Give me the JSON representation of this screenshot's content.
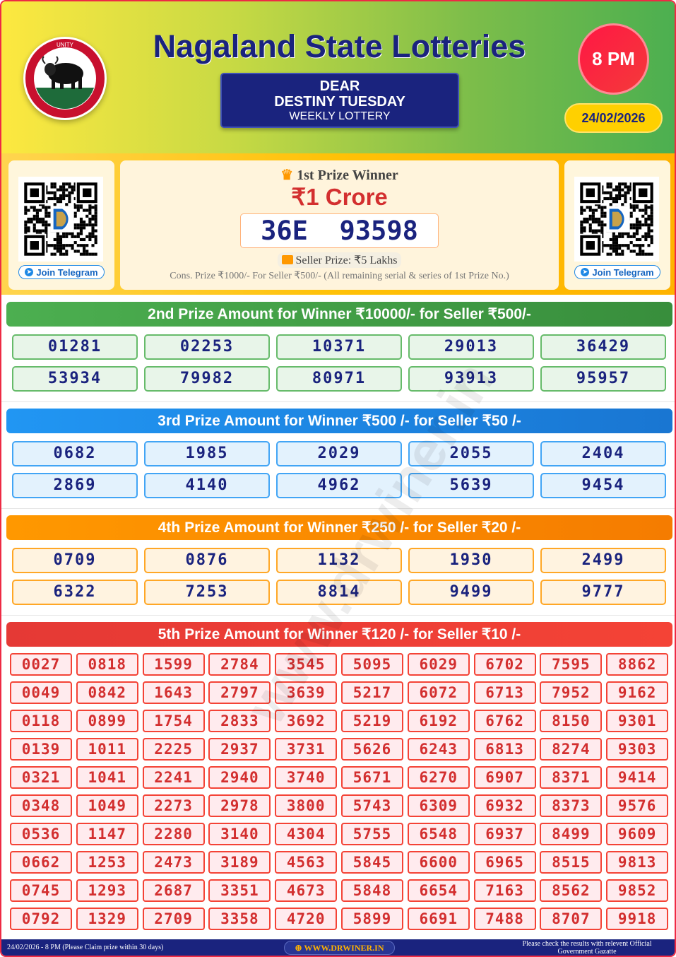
{
  "header": {
    "title": "Nagaland State Lotteries",
    "lottery_line1": "DEAR",
    "lottery_line2": "DESTINY TUESDAY",
    "lottery_line3": "WEEKLY LOTTERY",
    "time": "8 PM",
    "date": "24/02/2026",
    "logo_text": "UNITY · GOVERNMENT OF NAGALAND"
  },
  "colors": {
    "navy": "#1a237e",
    "red": "#d32f2f",
    "green": "#43a047",
    "blue": "#1e88e5",
    "orange": "#fb8c00",
    "red_header": "#e53935"
  },
  "telegram": {
    "label": "Join Telegram"
  },
  "first_prize": {
    "title": "1st Prize Winner",
    "amount": "₹1 Crore",
    "number": "36E  93598",
    "seller": "Seller Prize: ₹5 Lakhs",
    "cons": "Cons. Prize ₹1000/- For Seller ₹500/- (All remaining serial & series of 1st Prize No.)"
  },
  "second_prize": {
    "heading": "2nd Prize Amount for Winner ₹10000/- for Seller ₹500/-",
    "numbers": [
      "01281",
      "02253",
      "10371",
      "29013",
      "36429",
      "53934",
      "79982",
      "80971",
      "93913",
      "95957"
    ]
  },
  "third_prize": {
    "heading": "3rd Prize Amount for Winner ₹500 /- for Seller ₹50 /-",
    "numbers": [
      "0682",
      "1985",
      "2029",
      "2055",
      "2404",
      "2869",
      "4140",
      "4962",
      "5639",
      "9454"
    ]
  },
  "fourth_prize": {
    "heading": "4th Prize Amount for Winner ₹250 /- for Seller ₹20 /-",
    "numbers": [
      "0709",
      "0876",
      "1132",
      "1930",
      "2499",
      "6322",
      "7253",
      "8814",
      "9499",
      "9777"
    ]
  },
  "fifth_prize": {
    "heading": "5th Prize Amount for Winner ₹120 /- for Seller ₹10 /-",
    "numbers": [
      "0027",
      "0818",
      "1599",
      "2784",
      "3545",
      "5095",
      "6029",
      "6702",
      "7595",
      "8862",
      "0049",
      "0842",
      "1643",
      "2797",
      "3639",
      "5217",
      "6072",
      "6713",
      "7952",
      "9162",
      "0118",
      "0899",
      "1754",
      "2833",
      "3692",
      "5219",
      "6192",
      "6762",
      "8150",
      "9301",
      "0139",
      "1011",
      "2225",
      "2937",
      "3731",
      "5626",
      "6243",
      "6813",
      "8274",
      "9303",
      "0321",
      "1041",
      "2241",
      "2940",
      "3740",
      "5671",
      "6270",
      "6907",
      "8371",
      "9414",
      "0348",
      "1049",
      "2273",
      "2978",
      "3800",
      "5743",
      "6309",
      "6932",
      "8373",
      "9576",
      "0536",
      "1147",
      "2280",
      "3140",
      "4304",
      "5755",
      "6548",
      "6937",
      "8499",
      "9609",
      "0662",
      "1253",
      "2473",
      "3189",
      "4563",
      "5845",
      "6600",
      "6965",
      "8515",
      "9813",
      "0745",
      "1293",
      "2687",
      "3351",
      "4673",
      "5848",
      "6654",
      "7163",
      "8562",
      "9852",
      "0792",
      "1329",
      "2709",
      "3358",
      "4720",
      "5899",
      "6691",
      "7488",
      "8707",
      "9918"
    ]
  },
  "footer": {
    "left": "24/02/2026 - 8 PM (Please Claim prize within 30 days)",
    "site": "WWW.DRWINER.IN",
    "right": "Please check the results with relevent Official Government Gazatte"
  },
  "watermark": "www.drwiner.in"
}
